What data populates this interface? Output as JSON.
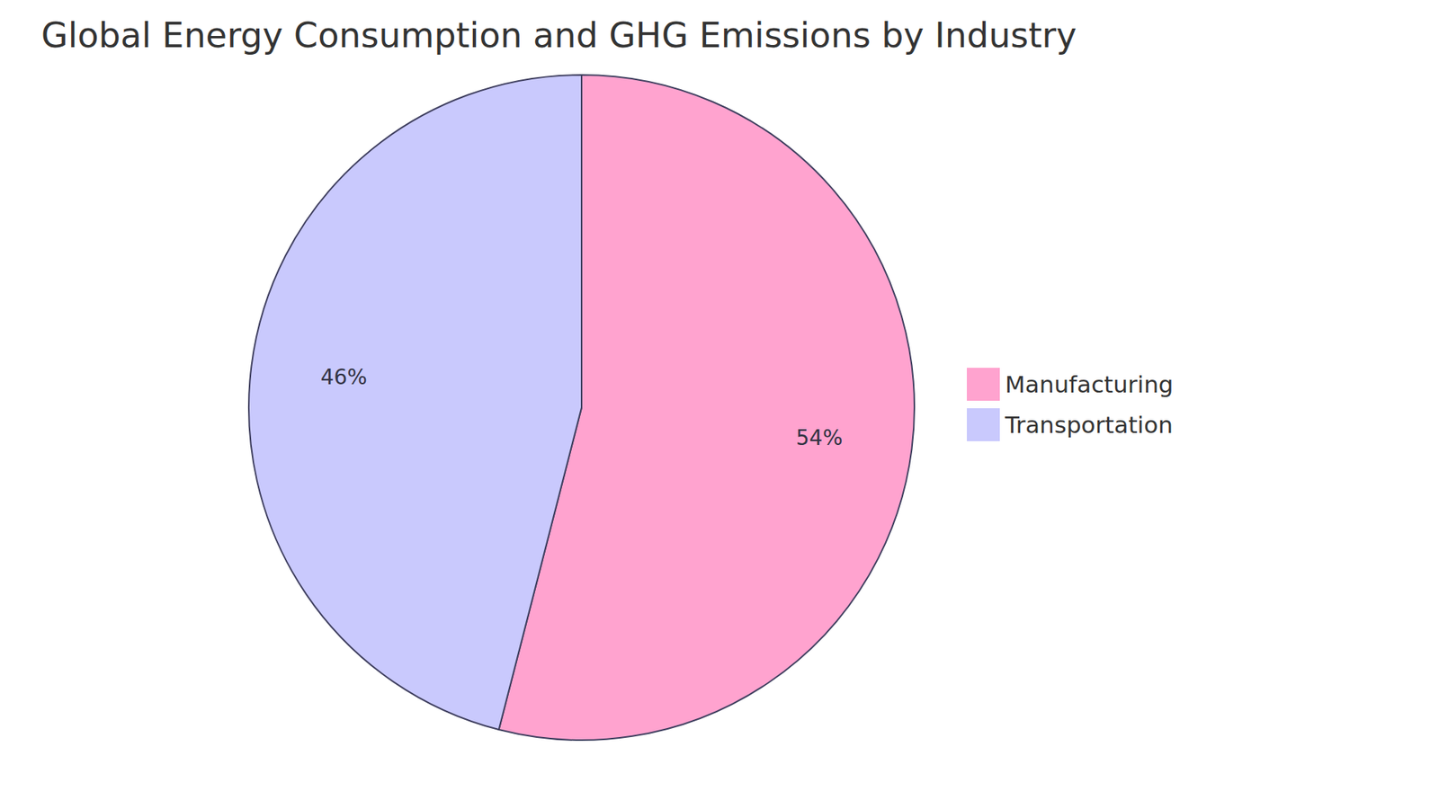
{
  "chart_data": {
    "type": "pie",
    "title": "Global Energy Consumption and GHG Emissions by Industry",
    "categories": [
      "Manufacturing",
      "Transportation"
    ],
    "values": [
      54,
      46
    ],
    "value_labels": [
      "54%",
      "46%"
    ],
    "colors": [
      "#ffa3cf",
      "#c9c9fd"
    ],
    "legend": "right"
  }
}
